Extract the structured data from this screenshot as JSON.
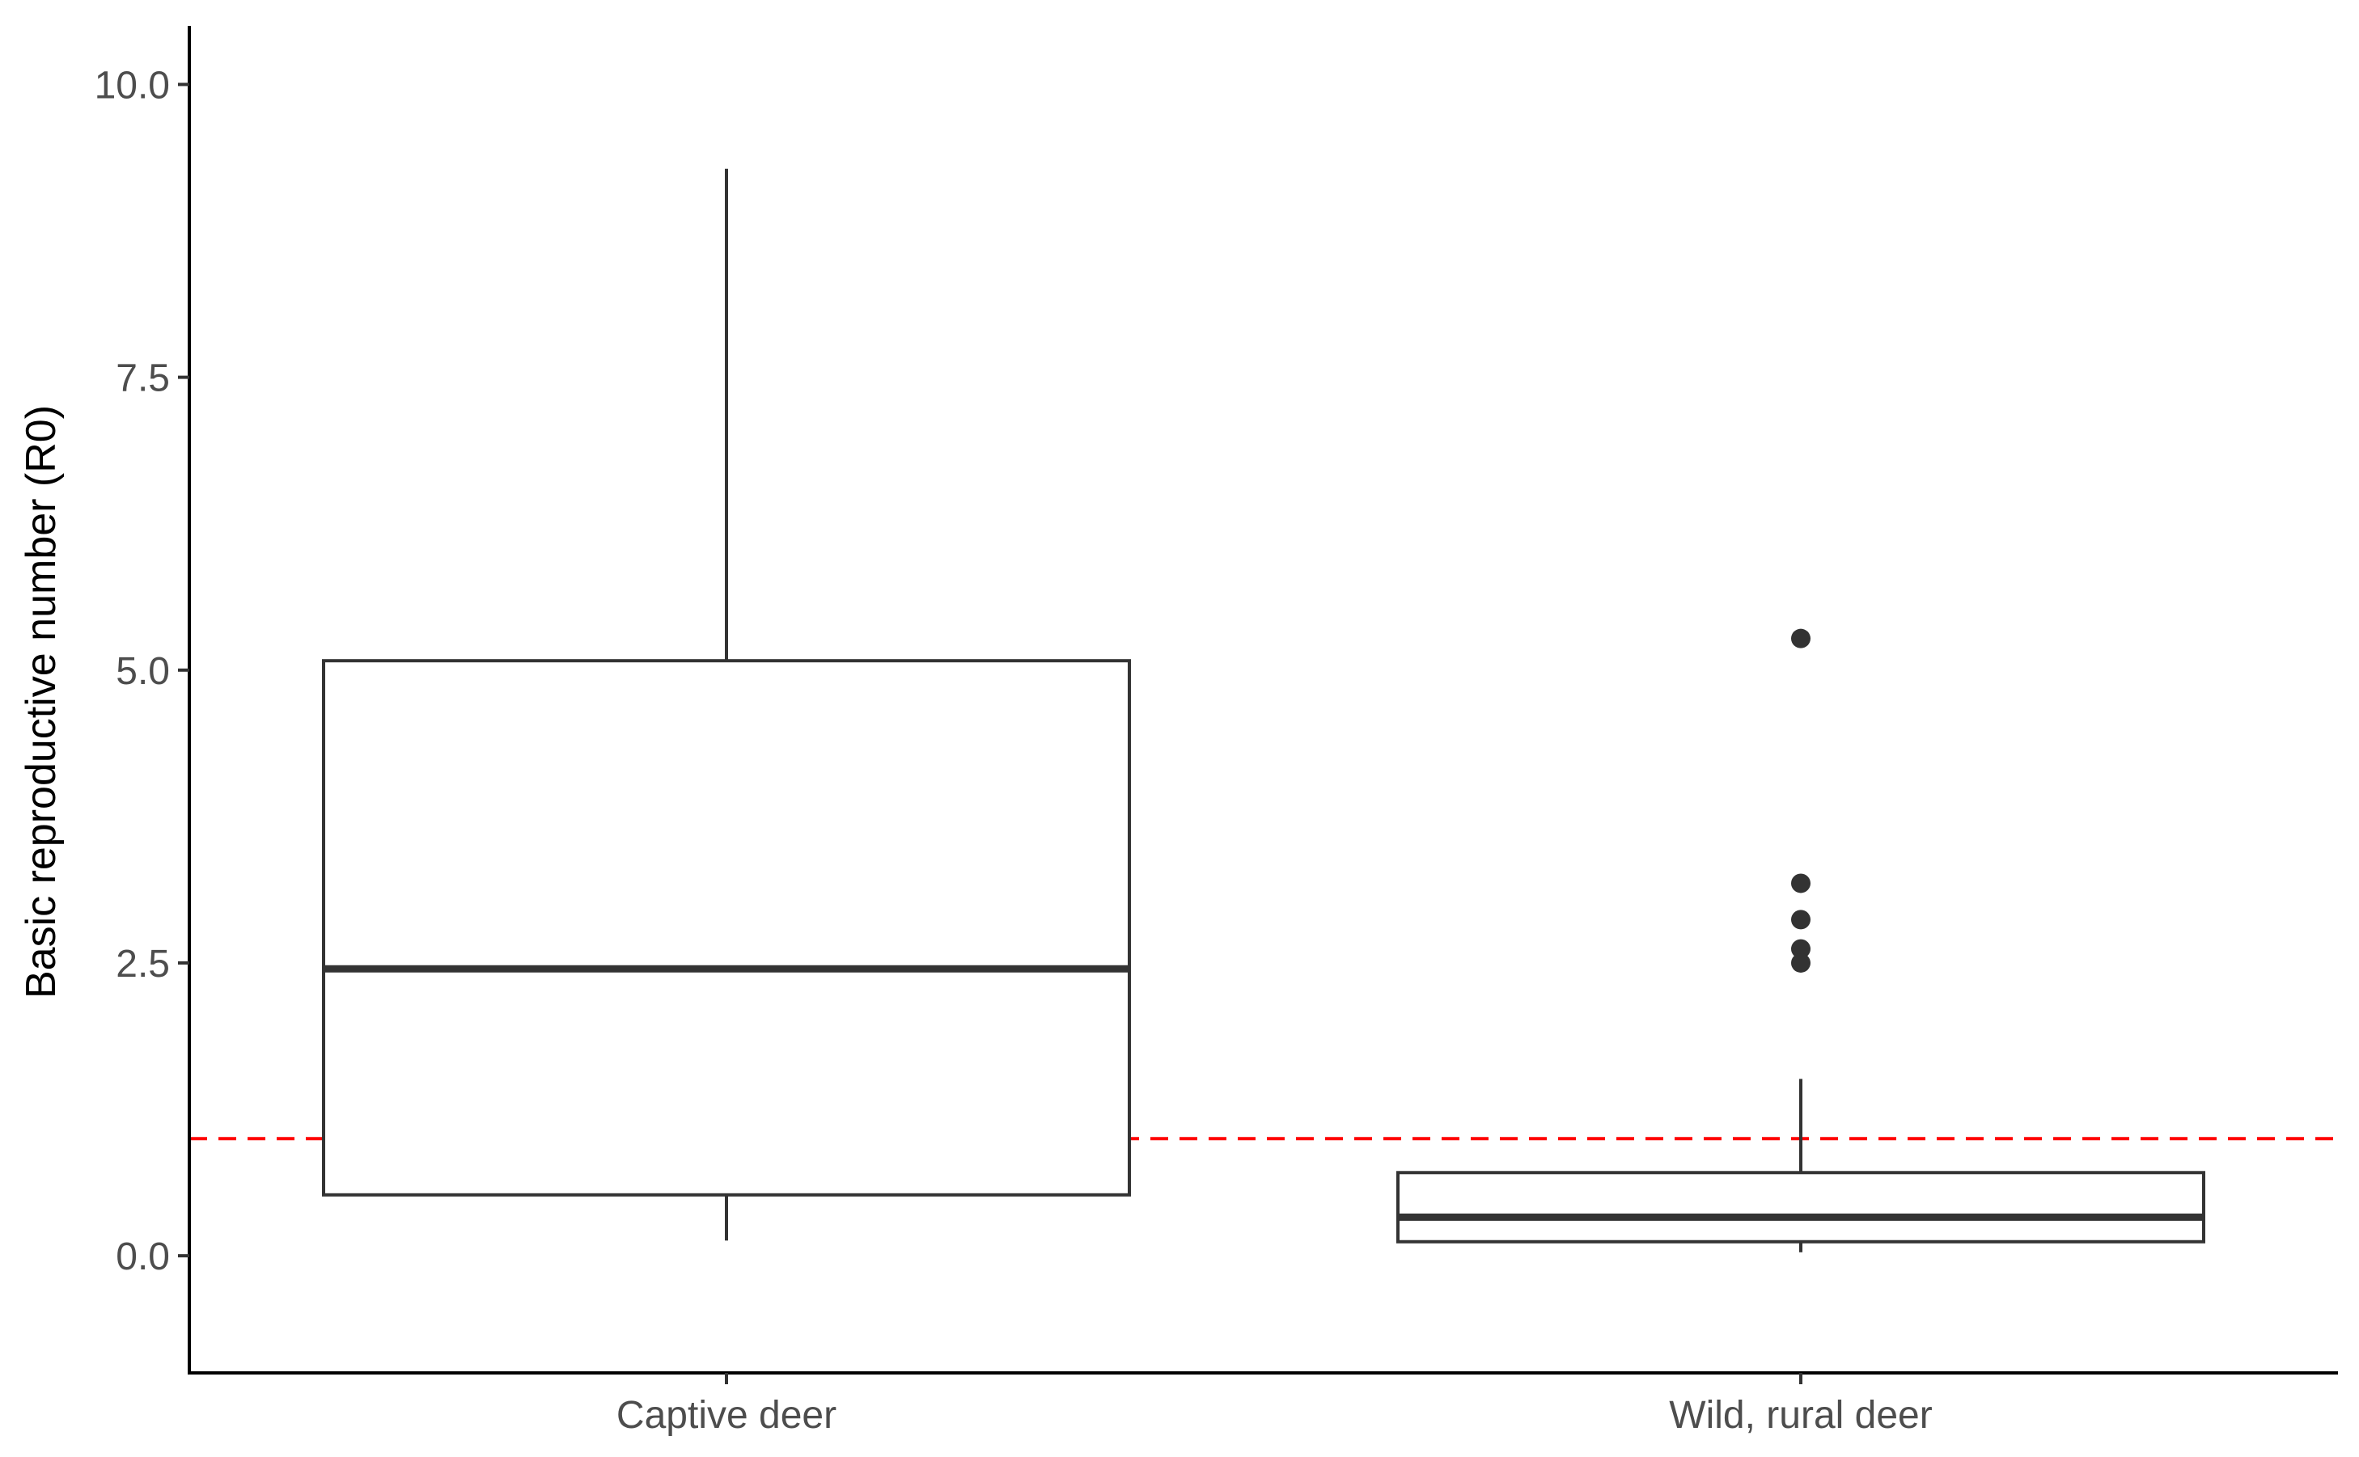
{
  "chart_data": {
    "type": "box",
    "title": "",
    "xlabel": "",
    "ylabel": "Basic reproductive number (R0)",
    "ylim": [
      -1.0,
      10.5
    ],
    "yticks": [
      0.0,
      2.5,
      5.0,
      7.5,
      10.0
    ],
    "ytick_labels": [
      "0.0",
      "2.5",
      "5.0",
      "7.5",
      "10.0"
    ],
    "categories": [
      "Captive deer",
      "Wild, rural deer"
    ],
    "boxes": [
      {
        "category": "Captive deer",
        "whisker_low": 0.13,
        "q1": 0.52,
        "median": 2.45,
        "q3": 5.08,
        "whisker_high": 9.28,
        "outliers": []
      },
      {
        "category": "Wild, rural deer",
        "whisker_low": 0.03,
        "q1": 0.12,
        "median": 0.33,
        "q3": 0.71,
        "whisker_high": 1.51,
        "outliers": [
          5.27,
          3.18,
          2.87,
          2.62,
          2.5
        ]
      }
    ],
    "reference_line": {
      "y": 1.0,
      "color": "#ff0000",
      "style": "dashed"
    },
    "grid": false,
    "legend": "none",
    "colors": {
      "box": "#333333",
      "axis": "#000000"
    }
  }
}
